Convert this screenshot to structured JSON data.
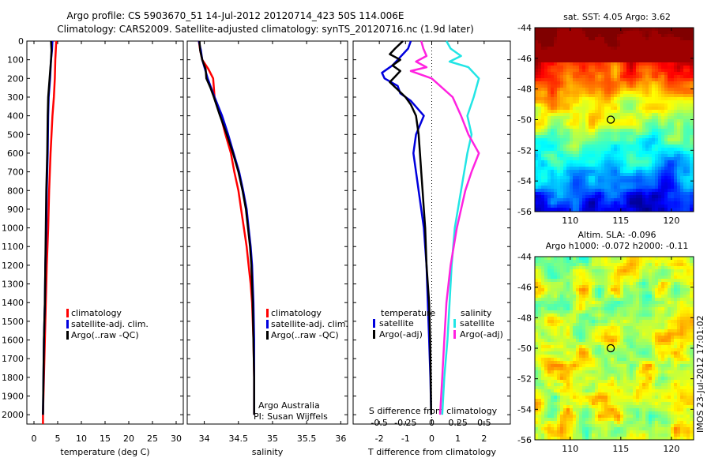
{
  "header": {
    "line1": "Argo profile: CS 5903670_51 14-Jul-2012 20120714_423 50S 114.006E",
    "line2": "Climatology: CARS2009. Satellite-adjusted climatology: synTS_20120716.nc (1.9d later)"
  },
  "side_label": "IMOS 23-Jul-2012 17:01:02",
  "colors": {
    "red": "#ff0000",
    "blue": "#0000dd",
    "black": "#000000",
    "cyan": "#22e5e5",
    "magenta": "#ff22e0"
  },
  "chart_data": [
    {
      "id": "temperature",
      "type": "line",
      "xlabel": "temperature (deg C)",
      "xlim": [
        -1.5,
        31.5
      ],
      "ylim": [
        0,
        2050
      ],
      "xticks": [
        0,
        5,
        10,
        15,
        20,
        25,
        30
      ],
      "yticks": [
        0,
        100,
        200,
        300,
        400,
        500,
        600,
        700,
        800,
        900,
        1000,
        1100,
        1200,
        1300,
        1400,
        1500,
        1600,
        1700,
        1800,
        1900,
        2000
      ],
      "legend": [
        "climatology",
        "satellite-adj. clim.",
        "Argo(..raw -QC)"
      ],
      "series": [
        {
          "name": "climatology",
          "color": "red",
          "y": [
            0,
            50,
            100,
            200,
            300,
            400,
            600,
            800,
            1000,
            1200,
            1400,
            1600,
            1800,
            2000,
            2050
          ],
          "x": [
            4.7,
            4.6,
            4.5,
            4.4,
            4.2,
            3.9,
            3.5,
            3.2,
            3.0,
            2.7,
            2.5,
            2.3,
            2.1,
            1.9,
            1.9
          ]
        },
        {
          "name": "satellite-adj. clim.",
          "color": "blue",
          "y": [
            0,
            50,
            100,
            200,
            300,
            400,
            600,
            800,
            1000,
            1200,
            1400,
            1600,
            1800,
            2000
          ],
          "x": [
            3.9,
            3.8,
            3.6,
            3.4,
            3.1,
            3.0,
            2.9,
            2.7,
            2.6,
            2.4,
            2.3,
            2.1,
            2.0,
            1.9
          ]
        },
        {
          "name": "Argo(..raw -QC)",
          "color": "black",
          "y": [
            0,
            50,
            100,
            200,
            300,
            400,
            600,
            800,
            1000,
            1200,
            1400,
            1600,
            1800,
            2000
          ],
          "x": [
            3.6,
            3.7,
            3.6,
            3.3,
            3.0,
            2.9,
            2.8,
            2.6,
            2.5,
            2.4,
            2.3,
            2.1,
            2.0,
            1.9
          ]
        }
      ]
    },
    {
      "id": "salinity",
      "type": "line",
      "xlabel": "salinity",
      "xlim": [
        33.75,
        36.1
      ],
      "ylim": [
        0,
        2050
      ],
      "xticks": [
        34,
        34.5,
        35,
        35.5,
        36
      ],
      "legend": [
        "climatology",
        "satellite-adj. clim.",
        "Argo(..raw -QC)"
      ],
      "annotations": [
        "Argo Australia",
        "PI: Susan Wijffels"
      ],
      "series": [
        {
          "name": "climatology",
          "color": "red",
          "y": [
            0,
            50,
            100,
            150,
            200,
            300,
            400,
            500,
            600,
            700,
            800,
            900,
            1000,
            1100,
            1200,
            1300,
            1400,
            1600,
            1800,
            2000
          ],
          "x": [
            33.92,
            33.94,
            33.97,
            34.06,
            34.13,
            34.15,
            34.24,
            34.31,
            34.39,
            34.44,
            34.5,
            34.54,
            34.58,
            34.62,
            34.65,
            34.68,
            34.7,
            34.72,
            34.73,
            34.73
          ]
        },
        {
          "name": "satellite-adj. clim.",
          "color": "blue",
          "y": [
            0,
            50,
            100,
            150,
            200,
            300,
            400,
            500,
            600,
            700,
            800,
            900,
            1000,
            1100,
            1200,
            1300,
            1400,
            1600,
            1800,
            2000
          ],
          "x": [
            33.92,
            33.95,
            33.97,
            34.01,
            34.05,
            34.15,
            34.26,
            34.35,
            34.43,
            34.51,
            34.57,
            34.62,
            34.65,
            34.68,
            34.7,
            34.71,
            34.72,
            34.73,
            34.73,
            34.73
          ]
        },
        {
          "name": "Argo(..raw -QC)",
          "color": "black",
          "y": [
            0,
            50,
            100,
            150,
            200,
            250,
            300,
            400,
            500,
            600,
            700,
            800,
            900,
            1000,
            1100,
            1200,
            1400,
            1600,
            1800,
            2000
          ],
          "x": [
            33.93,
            33.94,
            33.97,
            34.02,
            34.03,
            34.09,
            34.14,
            34.23,
            34.33,
            34.42,
            34.5,
            34.56,
            34.61,
            34.64,
            34.67,
            34.69,
            34.71,
            34.72,
            34.73,
            34.73
          ]
        }
      ]
    },
    {
      "id": "difference",
      "type": "line",
      "xlabel": "T difference from climatology",
      "xlabel_top": "S difference from climatology",
      "xlim": [
        -3,
        3
      ],
      "ylim": [
        0,
        2050
      ],
      "xticks": [
        -2,
        -1,
        0,
        1,
        2
      ],
      "xticks_s": [
        -0.5,
        -0.25,
        0,
        0.25,
        0.5
      ],
      "legend_temp_title": "temperature",
      "legend_sal_title": "salinity",
      "legend": [
        "satellite",
        "Argo(-adj)",
        "satellite",
        "Argo(-adj)"
      ],
      "series": [
        {
          "name": "satellite",
          "group": "temperature",
          "color": "blue",
          "y": [
            0,
            40,
            70,
            100,
            130,
            170,
            200,
            240,
            280,
            320,
            400,
            500,
            600,
            700,
            800,
            900,
            1000,
            1200,
            1400,
            1600,
            1800,
            2000
          ],
          "x": [
            -0.8,
            -0.9,
            -1.1,
            -1.3,
            -1.5,
            -1.9,
            -1.8,
            -1.3,
            -1.2,
            -0.8,
            -0.3,
            -0.6,
            -0.7,
            -0.6,
            -0.5,
            -0.4,
            -0.3,
            -0.2,
            -0.15,
            -0.1,
            -0.05,
            -0.02
          ]
        },
        {
          "name": "Argo(-adj)",
          "group": "temperature",
          "color": "black",
          "y": [
            0,
            40,
            70,
            100,
            130,
            160,
            190,
            220,
            260,
            300,
            340,
            400,
            500,
            600,
            700,
            800,
            900,
            1000,
            1200,
            1400,
            1600,
            1800,
            2000
          ],
          "x": [
            -1.1,
            -1.4,
            -1.6,
            -1.2,
            -1.5,
            -1.2,
            -1.4,
            -1.6,
            -1.3,
            -1.0,
            -0.8,
            -0.6,
            -0.5,
            -0.45,
            -0.4,
            -0.35,
            -0.3,
            -0.25,
            -0.2,
            -0.1,
            -0.06,
            -0.04,
            -0.02
          ]
        },
        {
          "name": "satellite",
          "group": "salinity",
          "color": "cyan",
          "y": [
            0,
            40,
            80,
            110,
            140,
            200,
            300,
            400,
            500,
            600,
            700,
            800,
            1000,
            1200,
            1400,
            1600,
            1800,
            2000
          ],
          "x": [
            0.14,
            0.18,
            0.28,
            0.17,
            0.35,
            0.45,
            0.4,
            0.34,
            0.38,
            0.34,
            0.31,
            0.28,
            0.22,
            0.19,
            0.17,
            0.15,
            0.12,
            0.1
          ]
        },
        {
          "name": "Argo(-adj)",
          "group": "salinity",
          "color": "magenta",
          "y": [
            0,
            40,
            80,
            110,
            140,
            160,
            200,
            300,
            400,
            500,
            600,
            700,
            800,
            1000,
            1200,
            1400,
            1600,
            1800,
            2000
          ],
          "x": [
            -0.1,
            -0.08,
            -0.05,
            -0.15,
            -0.05,
            -0.2,
            0.0,
            0.2,
            0.28,
            0.35,
            0.45,
            0.38,
            0.32,
            0.24,
            0.18,
            0.14,
            0.12,
            0.1,
            0.08
          ]
        }
      ]
    },
    {
      "id": "sst_map",
      "type": "heatmap",
      "title": "sat. SST: 4.05 Argo: 3.62",
      "xlim": [
        106.5,
        122.2
      ],
      "ylim": [
        -56,
        -44
      ],
      "xticks": [
        110,
        115,
        120
      ],
      "yticks": [
        -44,
        -46,
        -48,
        -50,
        -52,
        -54,
        -56
      ],
      "marker": [
        114.006,
        -50
      ]
    },
    {
      "id": "sla_map",
      "type": "heatmap",
      "title_line1": "Altim. SLA: -0.096",
      "title_line2": "Argo h1000: -0.072 h2000: -0.11",
      "xlim": [
        106.5,
        122.2
      ],
      "ylim": [
        -56,
        -44
      ],
      "xticks": [
        110,
        115,
        120
      ],
      "yticks": [
        -44,
        -46,
        -48,
        -50,
        -52,
        -54,
        -56
      ],
      "marker": [
        114.006,
        -50
      ]
    }
  ]
}
